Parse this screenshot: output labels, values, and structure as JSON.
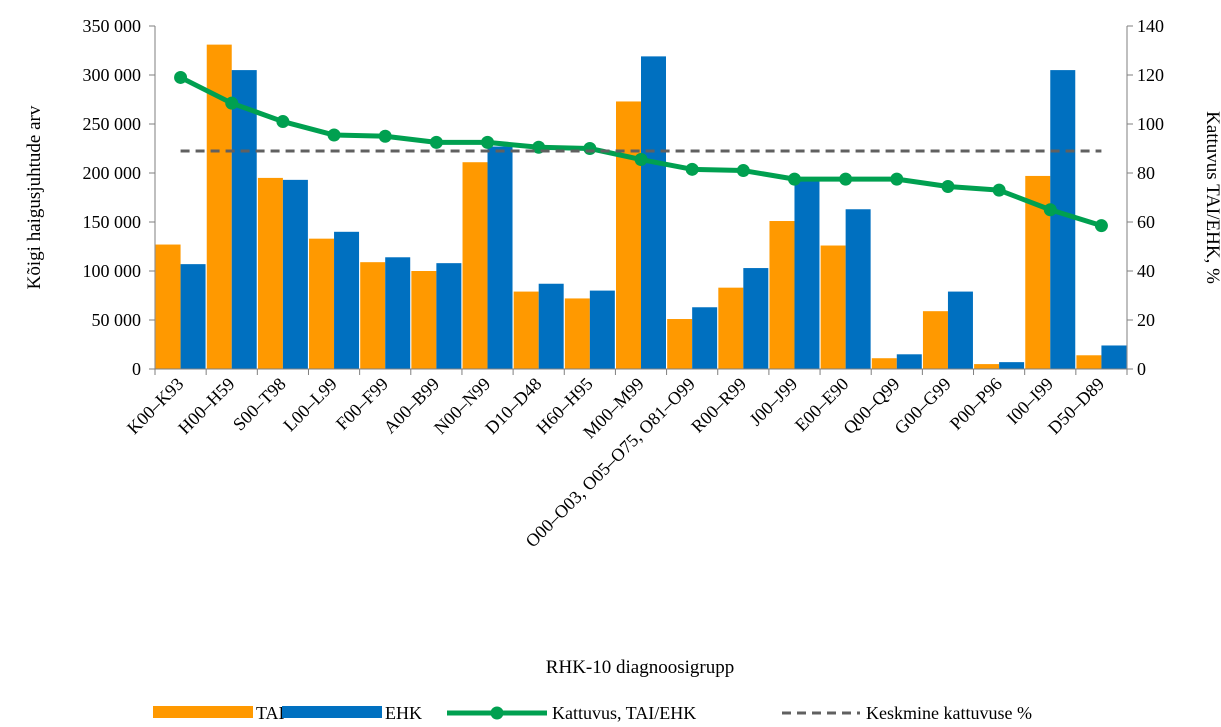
{
  "chart_data": {
    "type": "bar",
    "categories": [
      "K00–K93",
      "H00–H59",
      "S00–T98",
      "L00–L99",
      "F00–F99",
      "A00–B99",
      "N00–N99",
      "D10–D48",
      "H60–H95",
      "M00–M99",
      "O00–O03, O05–O75, O81–O99",
      "R00–R99",
      "J00–J99",
      "E00–E90",
      "Q00–Q99",
      "G00–G99",
      "P00–P96",
      "I00–I99",
      "D50–D89"
    ],
    "series": [
      {
        "name": "TAI",
        "kind": "bar",
        "axis": "left",
        "color": "#FF9900",
        "values": [
          127000,
          331000,
          195000,
          133000,
          109000,
          100000,
          211000,
          79000,
          72000,
          273000,
          51000,
          83000,
          151000,
          126000,
          11000,
          59000,
          5000,
          197000,
          14000
        ]
      },
      {
        "name": "EHK",
        "kind": "bar",
        "axis": "left",
        "color": "#0070C0",
        "values": [
          107000,
          305000,
          193000,
          140000,
          114000,
          108000,
          227000,
          87000,
          80000,
          319000,
          63000,
          103000,
          193000,
          163000,
          15000,
          79000,
          7000,
          305000,
          24000
        ]
      },
      {
        "name": "Kattuvus, TAI/EHK",
        "kind": "line",
        "axis": "right",
        "color": "#00A050",
        "marker": "circle",
        "values": [
          119,
          108.5,
          101,
          95.5,
          95,
          92.5,
          92.5,
          90.5,
          90,
          85.5,
          81.5,
          81,
          77.5,
          77.5,
          77.5,
          74.5,
          73,
          65,
          58.5
        ]
      },
      {
        "name": "Keskmine kattuvuse %",
        "kind": "line",
        "axis": "right",
        "color": "#606060",
        "dash": true,
        "values": [
          89,
          89,
          89,
          89,
          89,
          89,
          89,
          89,
          89,
          89,
          89,
          89,
          89,
          89,
          89,
          89,
          89,
          89,
          89
        ]
      }
    ],
    "xlabel": "RHK-10 diagnoosigrupp",
    "ylabel": "Kõigi haigusjuhtude arv",
    "y2label": "Kattuvus TAI/EHK, %",
    "ylim": [
      0,
      350000
    ],
    "y2lim": [
      0,
      140
    ],
    "yticks": [
      "0",
      "50 000",
      "100 000",
      "150 000",
      "200 000",
      "250 000",
      "300 000",
      "350 000"
    ],
    "y2ticks": [
      "0",
      "20",
      "40",
      "60",
      "80",
      "100",
      "120",
      "140"
    ],
    "grid": false,
    "legend_position": "bottom"
  }
}
